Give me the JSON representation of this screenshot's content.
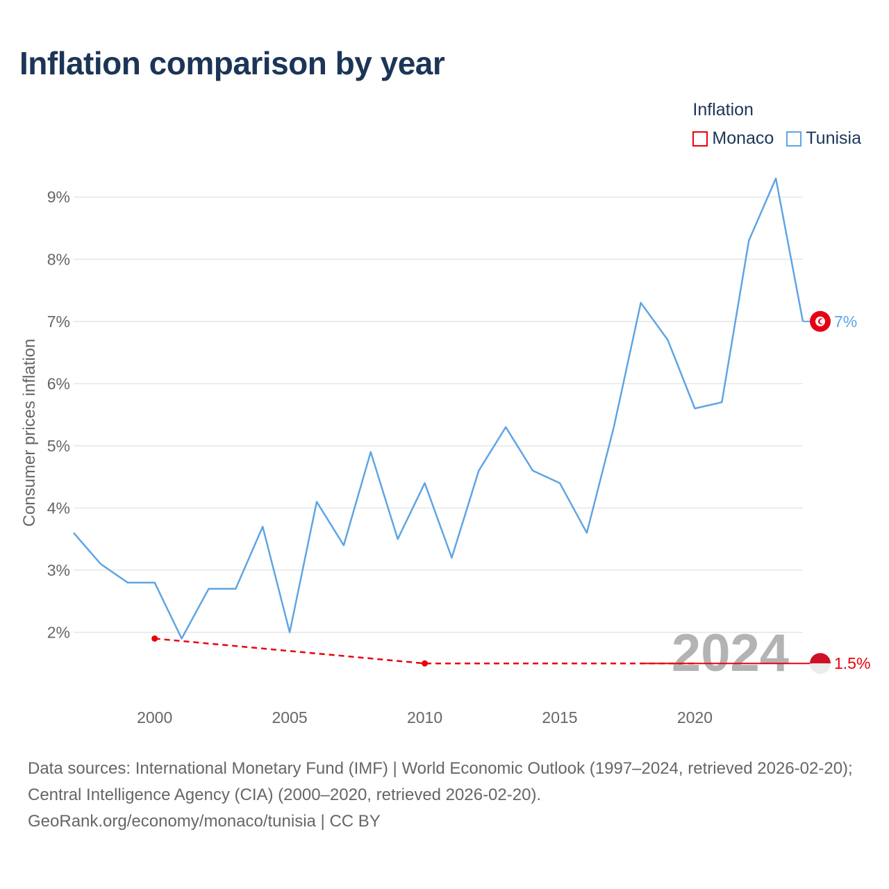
{
  "title": "Inflation comparison by year",
  "legend": {
    "title": "Inflation",
    "items": [
      {
        "name": "Monaco",
        "color": "#e8000b"
      },
      {
        "name": "Tunisia",
        "color": "#5fa4e3"
      }
    ]
  },
  "chart_data": {
    "type": "line",
    "title": "Inflation comparison by year",
    "xlabel": "",
    "ylabel": "Consumer prices inflation",
    "xlim": [
      1997,
      2024
    ],
    "ylim": [
      1,
      9.6
    ],
    "x_ticks": [
      2000,
      2005,
      2010,
      2015,
      2020
    ],
    "y_ticks": [
      {
        "value": 2,
        "label": "2%"
      },
      {
        "value": 3,
        "label": "3%"
      },
      {
        "value": 4,
        "label": "4%"
      },
      {
        "value": 5,
        "label": "5%"
      },
      {
        "value": 6,
        "label": "6%"
      },
      {
        "value": 7,
        "label": "7%"
      },
      {
        "value": 8,
        "label": "8%"
      },
      {
        "value": 9,
        "label": "9%"
      }
    ],
    "grid": true,
    "current_year": "2024",
    "series": [
      {
        "name": "Tunisia",
        "color": "#5fa4e3",
        "x": [
          1997,
          1998,
          1999,
          2000,
          2001,
          2002,
          2003,
          2004,
          2005,
          2006,
          2007,
          2008,
          2009,
          2010,
          2011,
          2012,
          2013,
          2014,
          2015,
          2016,
          2017,
          2018,
          2019,
          2020,
          2021,
          2022,
          2023,
          2024
        ],
        "values": [
          3.6,
          3.1,
          2.8,
          2.8,
          1.9,
          2.7,
          2.7,
          3.7,
          2.0,
          4.1,
          3.4,
          4.9,
          3.5,
          4.4,
          3.2,
          4.6,
          5.3,
          4.6,
          4.4,
          3.6,
          5.3,
          7.3,
          6.7,
          5.6,
          5.7,
          8.3,
          9.3,
          7.0
        ],
        "end_label": "7%"
      },
      {
        "name": "Monaco",
        "color": "#e8000b",
        "x": [
          2000,
          2010,
          2020
        ],
        "values": [
          1.9,
          1.5,
          1.5
        ],
        "end_label": "1.5%"
      }
    ]
  },
  "footer": {
    "line1": "Data sources: International Monetary Fund (IMF) | World Economic Outlook (1997–2024, retrieved 2026-02-20); Central Intelligence Agency (CIA) (2000–2020, retrieved 2026-02-20).",
    "line2": "GeoRank.org/economy/monaco/tunisia | CC BY"
  }
}
